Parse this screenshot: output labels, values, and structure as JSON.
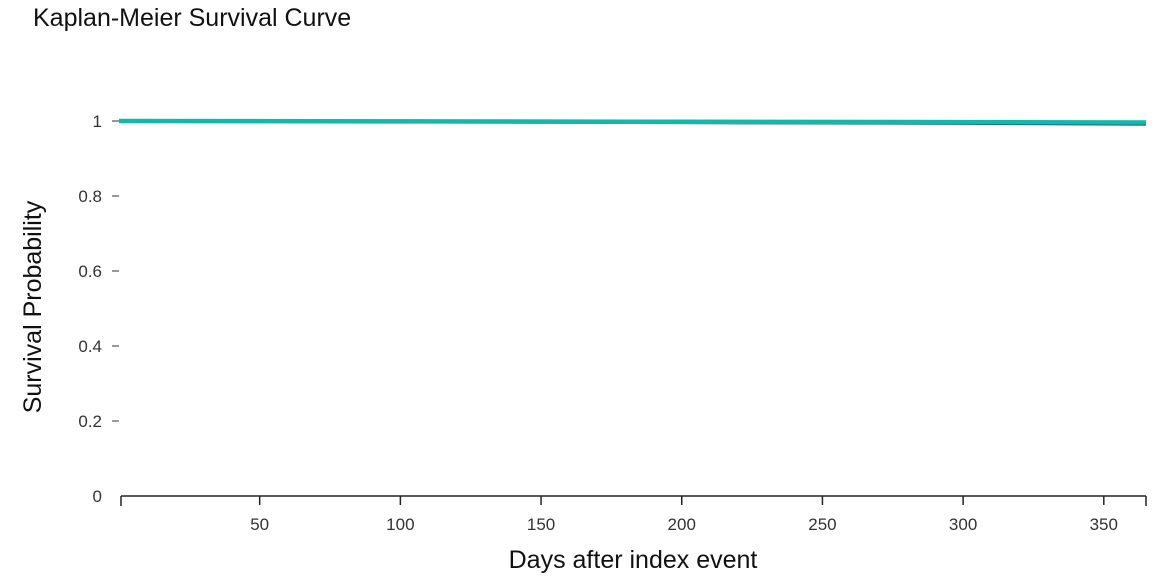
{
  "chart_data": {
    "type": "line",
    "title": "Kaplan-Meier Survival Curve",
    "xlabel": "Days after index event",
    "ylabel": "Survival Probability",
    "xlim": [
      0,
      365
    ],
    "ylim": [
      0,
      1
    ],
    "x_ticks": [
      50,
      100,
      150,
      200,
      250,
      300,
      350
    ],
    "y_ticks": [
      0,
      0.2,
      0.4,
      0.6,
      0.8,
      1
    ],
    "y_tick_labels": [
      "0",
      "0.2",
      "0.4",
      "0.6",
      "0.8",
      "1"
    ],
    "grid": false,
    "legend": "none",
    "series": [
      {
        "color": "#1f3b73",
        "x": [
          0,
          100,
          200,
          300,
          365
        ],
        "y": [
          1.0,
          0.999,
          0.997,
          0.995,
          0.993
        ]
      },
      {
        "color": "#12b8a8",
        "x": [
          0,
          100,
          200,
          300,
          365
        ],
        "y": [
          1.0,
          0.999,
          0.998,
          0.997,
          0.996
        ]
      }
    ]
  }
}
